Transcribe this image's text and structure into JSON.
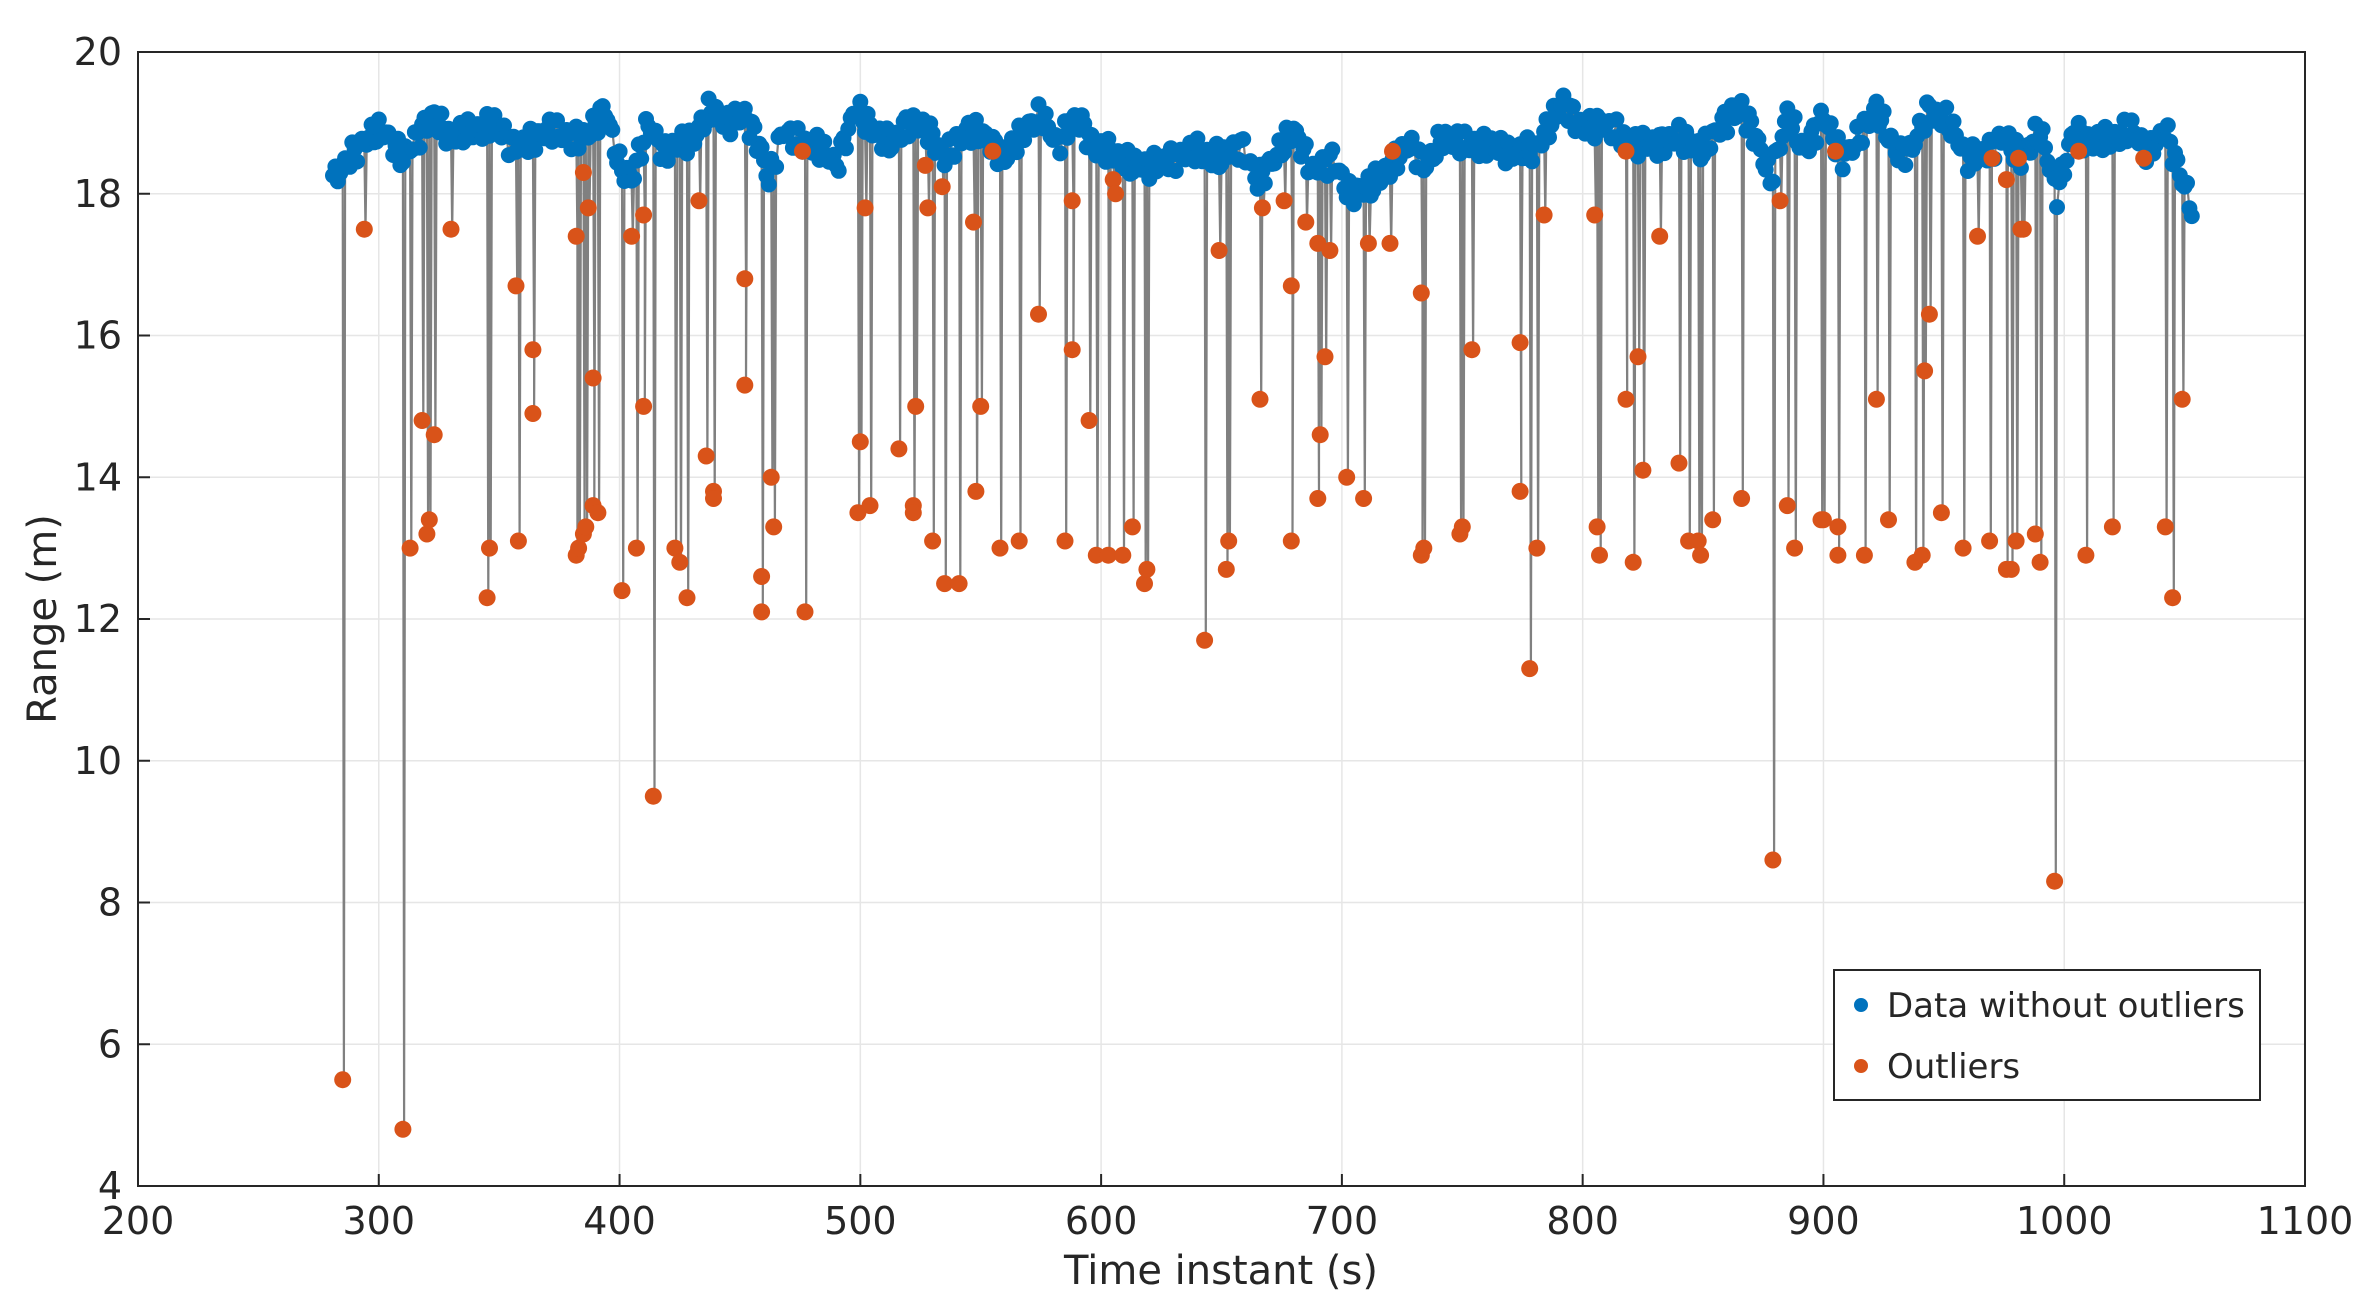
{
  "colors": {
    "inlier": "#0072BD",
    "outlier": "#D95319",
    "line": "#808080",
    "grid": "#e6e6e6",
    "axis": "#262626"
  },
  "chart_data": {
    "type": "scatter",
    "title": "",
    "xlabel": "Time instant (s)",
    "ylabel": "Range (m)",
    "xlim": [
      200,
      1100
    ],
    "ylim": [
      4,
      20
    ],
    "xticks": [
      200,
      300,
      400,
      500,
      600,
      700,
      800,
      900,
      1000,
      1100
    ],
    "yticks": [
      4,
      6,
      8,
      10,
      12,
      14,
      16,
      18,
      20
    ],
    "grid": true,
    "legend_position": "bottom-right",
    "series": [
      {
        "name": "Data without outliers",
        "color": "#0072BD",
        "baseline_profile": [
          [
            281,
            18.2
          ],
          [
            290,
            18.6
          ],
          [
            296,
            18.8
          ],
          [
            302,
            18.9
          ],
          [
            310,
            18.5
          ],
          [
            318,
            18.9
          ],
          [
            322,
            19.1
          ],
          [
            330,
            18.8
          ],
          [
            340,
            18.9
          ],
          [
            348,
            19.0
          ],
          [
            355,
            18.7
          ],
          [
            362,
            18.7
          ],
          [
            370,
            18.9
          ],
          [
            380,
            18.8
          ],
          [
            386,
            18.8
          ],
          [
            394,
            19.2
          ],
          [
            400,
            18.4
          ],
          [
            405,
            18.2
          ],
          [
            412,
            19.0
          ],
          [
            418,
            18.6
          ],
          [
            425,
            18.7
          ],
          [
            431,
            18.8
          ],
          [
            438,
            19.2
          ],
          [
            445,
            19.0
          ],
          [
            452,
            19.1
          ],
          [
            458,
            18.7
          ],
          [
            462,
            18.2
          ],
          [
            468,
            18.9
          ],
          [
            475,
            18.7
          ],
          [
            482,
            18.7
          ],
          [
            490,
            18.4
          ],
          [
            498,
            19.2
          ],
          [
            505,
            18.9
          ],
          [
            512,
            18.7
          ],
          [
            520,
            19.0
          ],
          [
            528,
            18.9
          ],
          [
            535,
            18.5
          ],
          [
            545,
            18.9
          ],
          [
            552,
            18.8
          ],
          [
            560,
            18.5
          ],
          [
            568,
            18.9
          ],
          [
            575,
            19.1
          ],
          [
            582,
            18.7
          ],
          [
            590,
            19.1
          ],
          [
            598,
            18.6
          ],
          [
            605,
            18.6
          ],
          [
            612,
            18.4
          ],
          [
            620,
            18.4
          ],
          [
            630,
            18.5
          ],
          [
            640,
            18.6
          ],
          [
            650,
            18.5
          ],
          [
            658,
            18.7
          ],
          [
            665,
            18.2
          ],
          [
            672,
            18.5
          ],
          [
            680,
            18.9
          ],
          [
            688,
            18.3
          ],
          [
            696,
            18.5
          ],
          [
            703,
            18.0
          ],
          [
            712,
            18.1
          ],
          [
            720,
            18.4
          ],
          [
            728,
            18.7
          ],
          [
            735,
            18.4
          ],
          [
            742,
            18.8
          ],
          [
            750,
            18.7
          ],
          [
            760,
            18.7
          ],
          [
            770,
            18.6
          ],
          [
            780,
            18.6
          ],
          [
            785,
            18.9
          ],
          [
            792,
            19.3
          ],
          [
            800,
            18.9
          ],
          [
            808,
            19.0
          ],
          [
            816,
            18.8
          ],
          [
            822,
            18.7
          ],
          [
            830,
            18.7
          ],
          [
            840,
            18.8
          ],
          [
            850,
            18.6
          ],
          [
            858,
            19.0
          ],
          [
            866,
            19.2
          ],
          [
            872,
            18.8
          ],
          [
            878,
            18.2
          ],
          [
            885,
            19.1
          ],
          [
            892,
            18.6
          ],
          [
            900,
            19.1
          ],
          [
            908,
            18.5
          ],
          [
            915,
            18.8
          ],
          [
            922,
            19.2
          ],
          [
            930,
            18.6
          ],
          [
            936,
            18.6
          ],
          [
            944,
            19.2
          ],
          [
            952,
            19.0
          ],
          [
            960,
            18.5
          ],
          [
            968,
            18.6
          ],
          [
            975,
            18.8
          ],
          [
            982,
            18.5
          ],
          [
            990,
            18.9
          ],
          [
            997,
            18.0
          ],
          [
            1004,
            18.9
          ],
          [
            1012,
            18.7
          ],
          [
            1020,
            18.8
          ],
          [
            1028,
            18.9
          ],
          [
            1035,
            18.6
          ],
          [
            1042,
            18.9
          ],
          [
            1048,
            18.3
          ],
          [
            1053,
            17.8
          ]
        ]
      },
      {
        "name": "Outliers",
        "color": "#D95319",
        "points": [
          [
            285,
            5.5
          ],
          [
            294,
            17.5
          ],
          [
            310,
            4.8
          ],
          [
            313,
            13.0
          ],
          [
            318,
            14.8
          ],
          [
            320,
            13.2
          ],
          [
            321,
            13.4
          ],
          [
            323,
            14.6
          ],
          [
            330,
            17.5
          ],
          [
            345,
            12.3
          ],
          [
            346,
            13.0
          ],
          [
            357,
            16.7
          ],
          [
            358,
            13.1
          ],
          [
            364,
            15.8
          ],
          [
            364,
            14.9
          ],
          [
            382,
            17.4
          ],
          [
            382,
            12.9
          ],
          [
            383,
            13.0
          ],
          [
            385,
            13.2
          ],
          [
            385,
            18.3
          ],
          [
            386,
            13.3
          ],
          [
            387,
            17.8
          ],
          [
            389,
            15.4
          ],
          [
            389,
            13.6
          ],
          [
            391,
            13.5
          ],
          [
            401,
            12.4
          ],
          [
            405,
            17.4
          ],
          [
            407,
            13.0
          ],
          [
            410,
            17.7
          ],
          [
            410,
            15.0
          ],
          [
            414,
            9.5
          ],
          [
            423,
            13.0
          ],
          [
            425,
            12.8
          ],
          [
            428,
            12.3
          ],
          [
            433,
            17.9
          ],
          [
            436,
            14.3
          ],
          [
            439,
            13.8
          ],
          [
            439,
            13.7
          ],
          [
            452,
            16.8
          ],
          [
            452,
            15.3
          ],
          [
            459,
            12.6
          ],
          [
            459,
            12.1
          ],
          [
            463,
            14.0
          ],
          [
            464,
            13.3
          ],
          [
            477,
            12.1
          ],
          [
            476,
            18.6
          ],
          [
            499,
            13.5
          ],
          [
            500,
            14.5
          ],
          [
            502,
            17.8
          ],
          [
            504,
            13.6
          ],
          [
            516,
            14.4
          ],
          [
            522,
            13.6
          ],
          [
            522,
            13.5
          ],
          [
            523,
            15.0
          ],
          [
            527,
            18.4
          ],
          [
            528,
            17.8
          ],
          [
            530,
            13.1
          ],
          [
            534,
            18.1
          ],
          [
            535,
            12.5
          ],
          [
            541,
            12.5
          ],
          [
            547,
            17.6
          ],
          [
            548,
            13.8
          ],
          [
            550,
            15.0
          ],
          [
            555,
            18.6
          ],
          [
            558,
            13.0
          ],
          [
            566,
            13.1
          ],
          [
            574,
            16.3
          ],
          [
            585,
            13.1
          ],
          [
            588,
            17.9
          ],
          [
            588,
            15.8
          ],
          [
            595,
            14.8
          ],
          [
            598,
            12.9
          ],
          [
            603,
            12.9
          ],
          [
            605,
            18.2
          ],
          [
            606,
            18.0
          ],
          [
            609,
            12.9
          ],
          [
            613,
            13.3
          ],
          [
            618,
            12.5
          ],
          [
            619,
            12.7
          ],
          [
            643,
            11.7
          ],
          [
            649,
            17.2
          ],
          [
            652,
            12.7
          ],
          [
            653,
            13.1
          ],
          [
            666,
            15.1
          ],
          [
            667,
            17.8
          ],
          [
            676,
            17.9
          ],
          [
            679,
            16.7
          ],
          [
            679,
            13.1
          ],
          [
            685,
            17.6
          ],
          [
            690,
            13.7
          ],
          [
            690,
            17.3
          ],
          [
            691,
            14.6
          ],
          [
            693,
            15.7
          ],
          [
            695,
            17.2
          ],
          [
            702,
            14.0
          ],
          [
            709,
            13.7
          ],
          [
            711,
            17.3
          ],
          [
            720,
            17.3
          ],
          [
            721,
            18.6
          ],
          [
            733,
            16.6
          ],
          [
            733,
            12.9
          ],
          [
            734,
            13.0
          ],
          [
            749,
            13.2
          ],
          [
            750,
            13.3
          ],
          [
            754,
            15.8
          ],
          [
            774,
            13.8
          ],
          [
            774,
            15.9
          ],
          [
            778,
            11.3
          ],
          [
            781,
            13.0
          ],
          [
            784,
            17.7
          ],
          [
            805,
            17.7
          ],
          [
            806,
            13.3
          ],
          [
            807,
            12.9
          ],
          [
            818,
            15.1
          ],
          [
            818,
            18.6
          ],
          [
            821,
            12.8
          ],
          [
            823,
            15.7
          ],
          [
            825,
            14.1
          ],
          [
            832,
            17.4
          ],
          [
            840,
            14.2
          ],
          [
            844,
            13.1
          ],
          [
            848,
            13.1
          ],
          [
            849,
            12.9
          ],
          [
            854,
            13.4
          ],
          [
            866,
            13.7
          ],
          [
            879,
            8.6
          ],
          [
            882,
            17.9
          ],
          [
            885,
            13.6
          ],
          [
            888,
            13.0
          ],
          [
            899,
            13.4
          ],
          [
            900,
            13.4
          ],
          [
            905,
            18.6
          ],
          [
            906,
            13.3
          ],
          [
            906,
            12.9
          ],
          [
            917,
            12.9
          ],
          [
            922,
            15.1
          ],
          [
            927,
            13.4
          ],
          [
            938,
            12.8
          ],
          [
            941,
            12.9
          ],
          [
            942,
            15.5
          ],
          [
            944,
            16.3
          ],
          [
            949,
            13.5
          ],
          [
            958,
            13.0
          ],
          [
            964,
            17.4
          ],
          [
            969,
            13.1
          ],
          [
            970,
            18.5
          ],
          [
            976,
            12.7
          ],
          [
            976,
            18.2
          ],
          [
            978,
            12.7
          ],
          [
            980,
            13.1
          ],
          [
            981,
            18.5
          ],
          [
            982,
            17.5
          ],
          [
            983,
            17.5
          ],
          [
            988,
            13.2
          ],
          [
            990,
            12.8
          ],
          [
            996,
            8.3
          ],
          [
            1006,
            18.6
          ],
          [
            1009,
            12.9
          ],
          [
            1020,
            13.3
          ],
          [
            1033,
            18.5
          ],
          [
            1042,
            13.3
          ],
          [
            1045,
            12.3
          ],
          [
            1049,
            15.1
          ]
        ]
      }
    ]
  }
}
